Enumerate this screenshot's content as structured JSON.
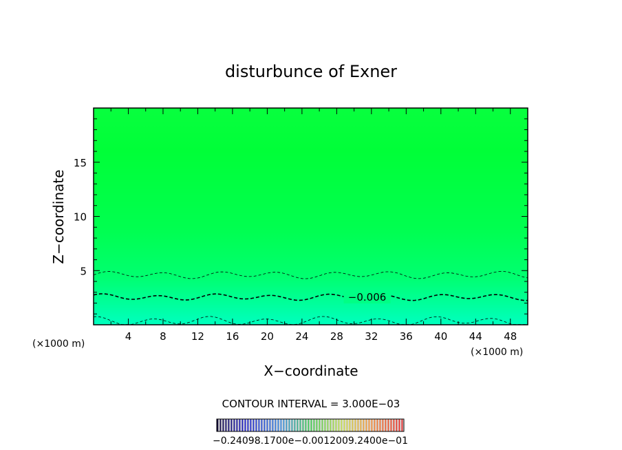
{
  "chart_data": {
    "type": "heatmap",
    "title": "disturbunce of Exner",
    "xlabel": "X−coordinate",
    "ylabel": "Z−coordinate",
    "x_unit": "(×1000 m)",
    "x_unit_right": "(×1000 m)",
    "xlim": [
      0,
      50
    ],
    "ylim": [
      0,
      20
    ],
    "x_ticks": [
      4,
      8,
      12,
      16,
      20,
      24,
      28,
      32,
      36,
      40,
      44,
      48
    ],
    "y_ticks": [
      5,
      10,
      15
    ],
    "contour_interval_label": "CONTOUR INTERVAL = 3.000E−03",
    "contours": [
      {
        "level": -0.003,
        "style": "thin-dashed",
        "mean_z": 4.6,
        "amplitude": 0.25
      },
      {
        "level": -0.006,
        "style": "thick-dashed",
        "mean_z": 2.55,
        "amplitude": 0.22,
        "label": "−0.006"
      },
      {
        "level": -0.009,
        "style": "thin-dashed",
        "mean_z": 0.35,
        "amplitude": 0.3
      }
    ],
    "colorbar": {
      "label_text": "−0.24098.1700e−0.0012009.2400e−01"
    },
    "colors": {
      "top": "#00ff35",
      "upper": "#10ff4a",
      "bottom": "#00ffb0"
    }
  }
}
